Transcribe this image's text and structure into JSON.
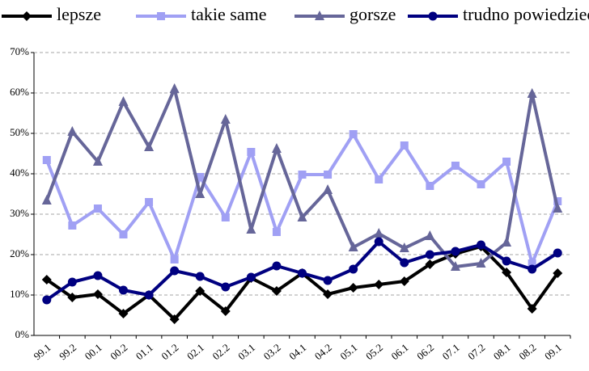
{
  "chart_data": {
    "type": "line",
    "categories": [
      "99.1",
      "99.2",
      "00.1",
      "00.2",
      "01.1",
      "01.2",
      "02.1",
      "02.2",
      "03.1",
      "03.2",
      "04.1",
      "04.2",
      "05.1",
      "05.2",
      "06.1",
      "06.2",
      "07.1",
      "07.2",
      "08.1",
      "08.2",
      "09.1"
    ],
    "series": [
      {
        "name": "lepsze",
        "color": "#000000",
        "marker": "diamond",
        "values": [
          13.8,
          9.4,
          10.2,
          5.4,
          10,
          4,
          11,
          6,
          14.2,
          11,
          15.4,
          10.2,
          11.8,
          12.6,
          13.4,
          17.6,
          20.2,
          22,
          15.6,
          6.6,
          15.4
        ]
      },
      {
        "name": "takie same",
        "color": "#a0a0f4",
        "marker": "square",
        "values": [
          43.4,
          27.2,
          31.4,
          25,
          33,
          18.8,
          39.2,
          29.2,
          45.4,
          25.6,
          39.8,
          39.8,
          49.8,
          38.6,
          47,
          37,
          42,
          37.4,
          43,
          17.8,
          33.2
        ]
      },
      {
        "name": "gorsze",
        "color": "#666699",
        "marker": "triangle",
        "values": [
          33.4,
          50.4,
          43,
          57.8,
          46.6,
          61,
          35,
          53.4,
          26.2,
          46.2,
          29.2,
          36,
          21.8,
          25.2,
          21.6,
          24.6,
          17,
          17.8,
          23,
          59.8,
          31.4
        ]
      },
      {
        "name": "trudno powiedzieć",
        "color": "#000080",
        "marker": "circle",
        "values": [
          8.8,
          13.2,
          14.8,
          11.2,
          10,
          16,
          14.6,
          12,
          14.4,
          17.2,
          15.4,
          13.6,
          16.4,
          23.2,
          18,
          20,
          20.8,
          22.4,
          18.4,
          16.4,
          20.4
        ]
      }
    ],
    "ylim": [
      0,
      70
    ],
    "yticks": [
      {
        "value": 0,
        "label": "0%"
      },
      {
        "value": 10,
        "label": "10%"
      },
      {
        "value": 20,
        "label": "20%"
      },
      {
        "value": 30,
        "label": "30%"
      },
      {
        "value": 40,
        "label": "40%"
      },
      {
        "value": 50,
        "label": "50%"
      },
      {
        "value": 60,
        "label": "60%"
      },
      {
        "value": 70,
        "label": "70%"
      }
    ],
    "grid": true,
    "legend": "top"
  }
}
